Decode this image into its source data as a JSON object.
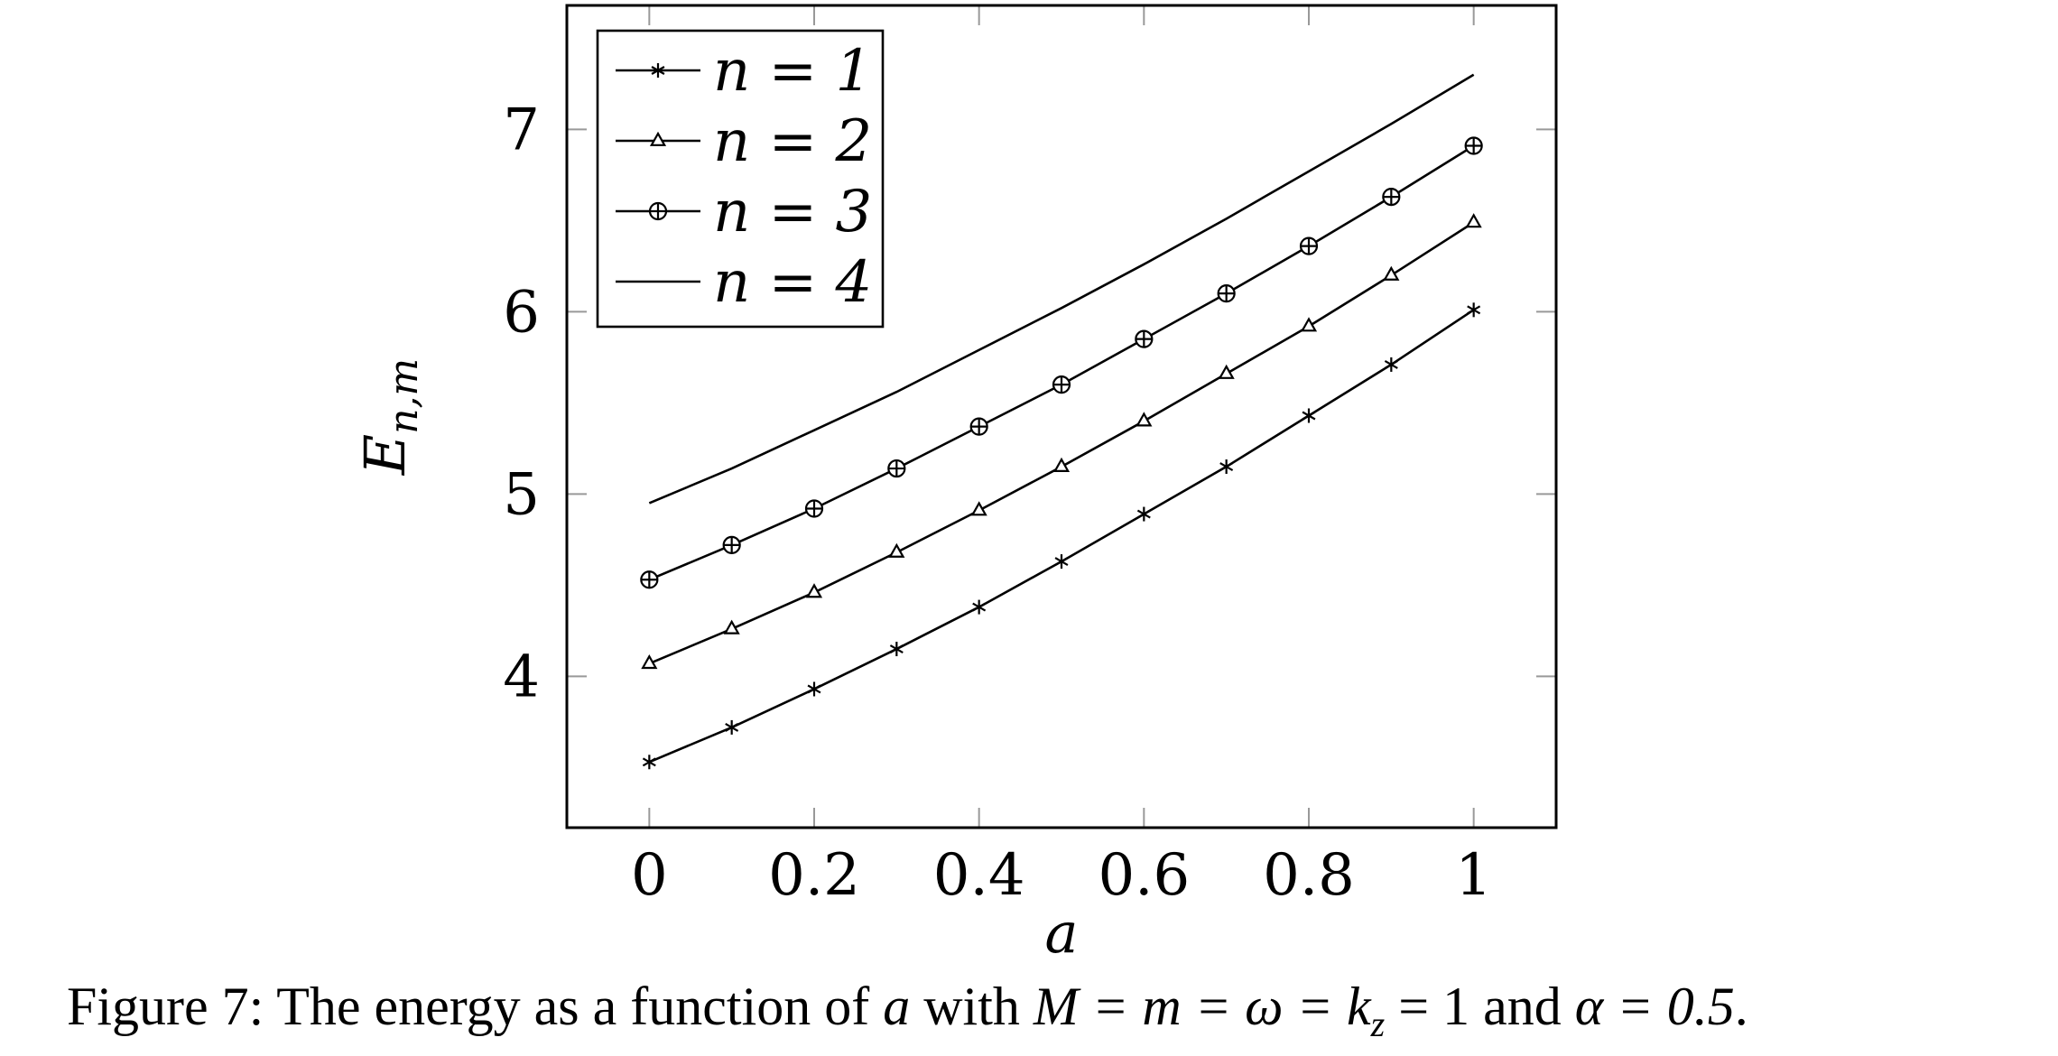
{
  "chart_data": {
    "type": "line",
    "xlabel": "a",
    "ylabel": "E",
    "ylabel_sub": "n,m",
    "xlim": [
      -0.1,
      1.1
    ],
    "ylim": [
      3.17,
      7.68
    ],
    "xticks": [
      0,
      0.2,
      0.4,
      0.6,
      0.8,
      1
    ],
    "xtick_labels": [
      "0",
      "0.2",
      "0.4",
      "0.6",
      "0.8",
      "1"
    ],
    "yticks": [
      4,
      5,
      6,
      7
    ],
    "ytick_labels": [
      "4",
      "5",
      "6",
      "7"
    ],
    "legend_position": "top-left",
    "x": [
      0,
      0.1,
      0.2,
      0.3,
      0.4,
      0.5,
      0.6,
      0.7,
      0.8,
      0.9,
      1.0
    ],
    "series": [
      {
        "name": "n = 1",
        "marker": "asterisk",
        "values": [
          3.53,
          3.72,
          3.93,
          4.15,
          4.38,
          4.63,
          4.89,
          5.15,
          5.43,
          5.71,
          6.01
        ]
      },
      {
        "name": "n = 2",
        "marker": "triangle",
        "values": [
          4.07,
          4.26,
          4.46,
          4.68,
          4.91,
          5.15,
          5.4,
          5.66,
          5.92,
          6.2,
          6.49
        ]
      },
      {
        "name": "n = 3",
        "marker": "oplus",
        "values": [
          4.53,
          4.72,
          4.92,
          5.14,
          5.37,
          5.6,
          5.85,
          6.1,
          6.36,
          6.63,
          6.91
        ]
      },
      {
        "name": "n = 4",
        "marker": "none",
        "values": [
          4.95,
          5.14,
          5.35,
          5.56,
          5.79,
          6.02,
          6.26,
          6.51,
          6.77,
          7.03,
          7.3
        ]
      }
    ]
  },
  "caption": {
    "prefix": "Figure 7: The energy as a function of ",
    "var_a": "a",
    "mid": " with ",
    "params_math": "M = m = ω = k",
    "params_sub": "z",
    "params_tail": " = 1",
    "and_text": " and ",
    "alpha_math": "α = 0.5",
    "end": "."
  }
}
